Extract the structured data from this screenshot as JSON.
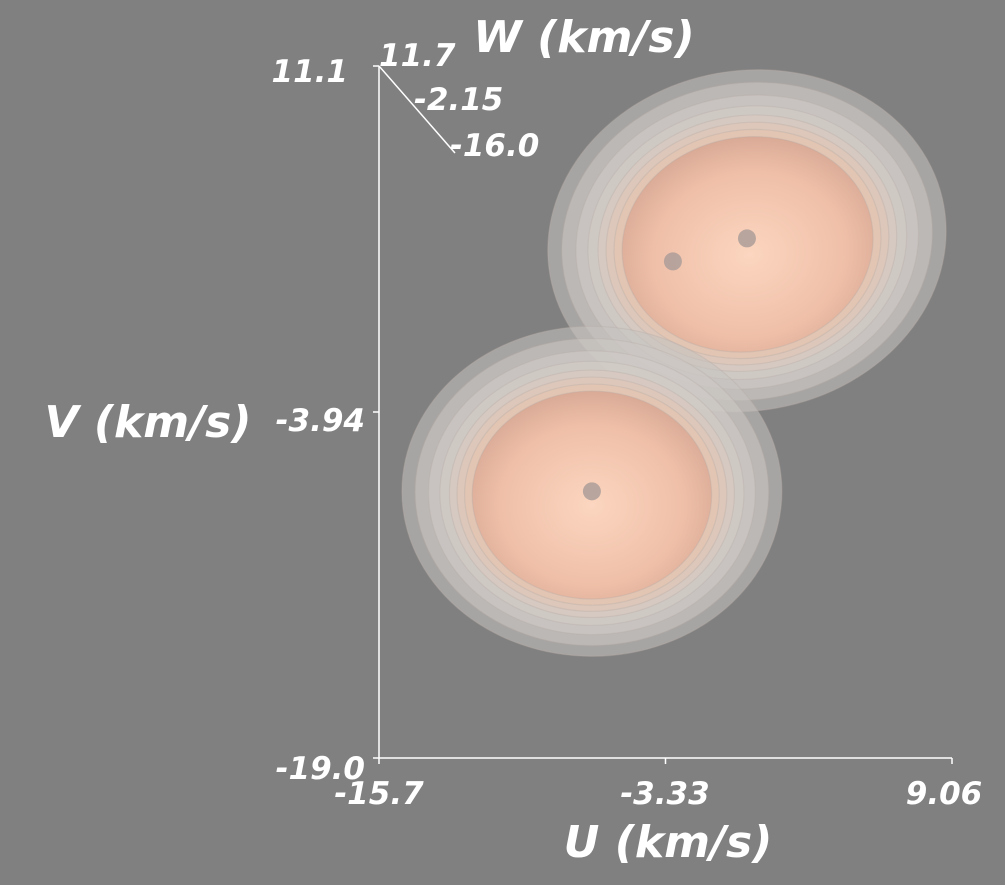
{
  "chart_data": {
    "type": "3d-isosurface",
    "xlabel": "U (km/s)",
    "ylabel": "V (km/s)",
    "zlabel": "W (km/s)",
    "x_ticks": [
      "-15.7",
      "-3.33",
      "9.06"
    ],
    "y_ticks": [
      "-19.0",
      "-3.94",
      "11.1"
    ],
    "z_ticks": [
      "11.7",
      "-2.15",
      "-16.0"
    ],
    "xlim": [
      -15.7,
      9.06
    ],
    "ylim": [
      -19.0,
      11.1
    ],
    "zlim": [
      -16.0,
      11.7
    ],
    "grid": false,
    "peaks": [
      {
        "u": 0.2,
        "v": 3.6
      },
      {
        "u": -3.0,
        "v": 2.6
      },
      {
        "u": -6.5,
        "v": -7.4
      }
    ],
    "colors": {
      "background": "#808080",
      "axis": "#ffffff",
      "outer_shell": "#c8c4c0",
      "inner_core": "#f5c7b0",
      "peak_marker": "#b0a09a"
    }
  }
}
